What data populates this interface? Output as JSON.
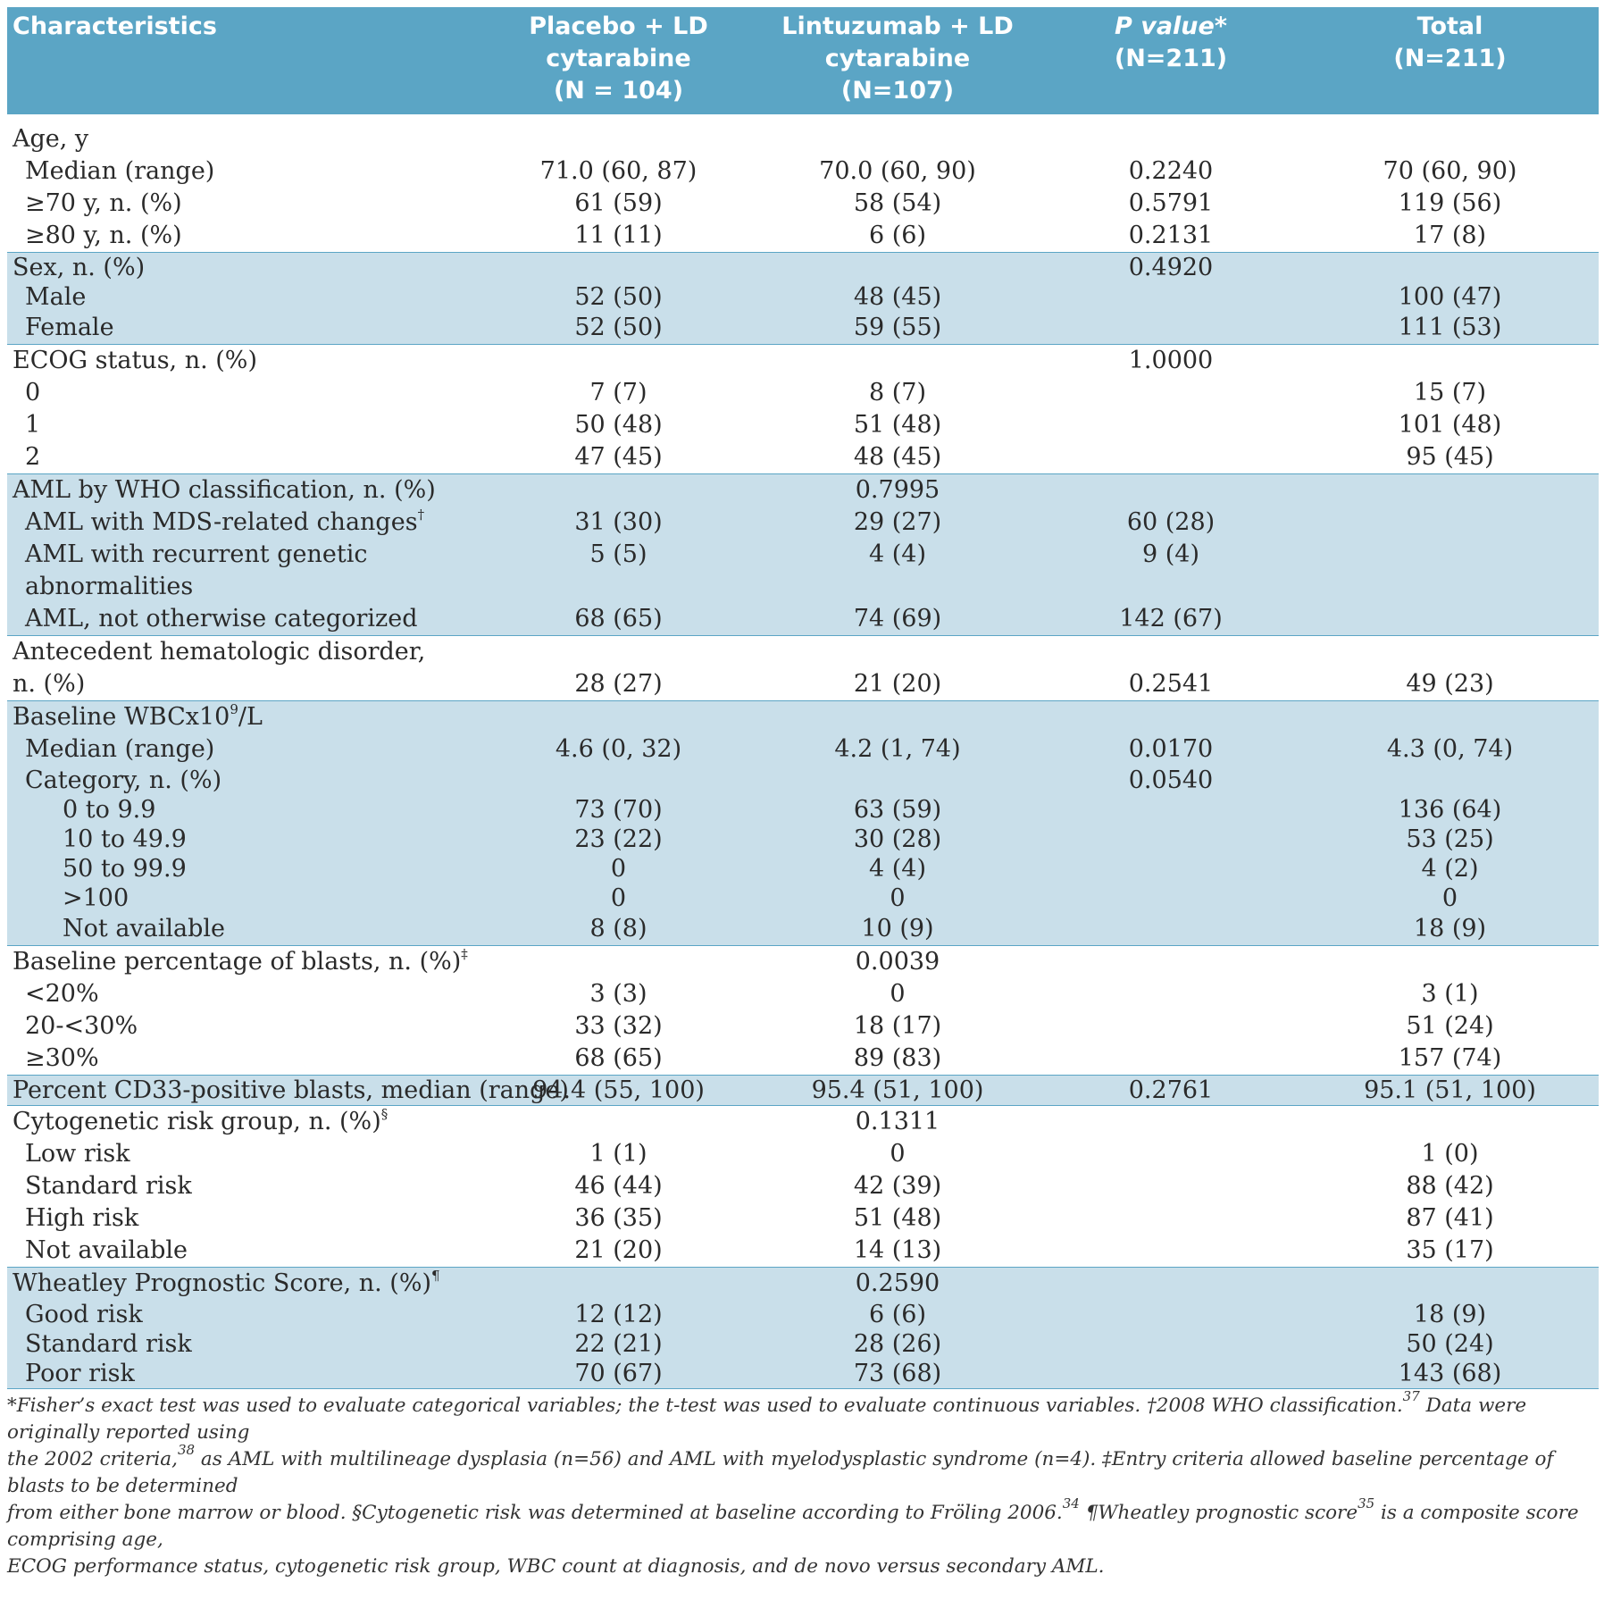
{
  "header": {
    "characteristics": "Characteristics",
    "placebo": [
      "Placebo + LD",
      "cytarabine",
      "(N = 104)"
    ],
    "lintuzumab": [
      "Lintuzumab + LD",
      "cytarabine",
      "(N=107)"
    ],
    "pvalue": [
      "P value*",
      "(N=211)"
    ],
    "total": [
      "Total",
      "(N=211)"
    ]
  },
  "rows": {
    "age_title": "Age, y",
    "age_median": {
      "label": "Median (range)",
      "placebo": "71.0 (60, 87)",
      "lintuzumab": "70.0 (60, 90)",
      "p": "0.2240",
      "total": "70 (60, 90)"
    },
    "age_70": {
      "label": "≥70 y, n. (%)",
      "placebo": "61 (59)",
      "lintuzumab": "58 (54)",
      "p": "0.5791",
      "total": "119 (56)"
    },
    "age_80": {
      "label": "≥80 y, n. (%)",
      "placebo": "11 (11)",
      "lintuzumab": "6 (6)",
      "p": "0.2131",
      "total": "17 (8)"
    },
    "sex_title": {
      "label": "Sex, n. (%)",
      "p": "0.4920"
    },
    "sex_male": {
      "label": "Male",
      "placebo": "52 (50)",
      "lintuzumab": "48 (45)",
      "total": "100 (47)"
    },
    "sex_female": {
      "label": "Female",
      "placebo": "52 (50)",
      "lintuzumab": "59 (55)",
      "total": "111 (53)"
    },
    "ecog_title": {
      "label": "ECOG status, n. (%)",
      "p": "1.0000"
    },
    "ecog_0": {
      "label": "0",
      "placebo": "7 (7)",
      "lintuzumab": "8 (7)",
      "total": "15 (7)"
    },
    "ecog_1": {
      "label": "1",
      "placebo": "50 (48)",
      "lintuzumab": "51 (48)",
      "total": "101 (48)"
    },
    "ecog_2": {
      "label": "2",
      "placebo": "47 (45)",
      "lintuzumab": "48 (45)",
      "total": "95 (45)"
    },
    "who_title": {
      "label": "AML by WHO classification, n. (%)",
      "lintuzumab": "0.7995"
    },
    "who_mds": {
      "label": "AML with MDS-related changes",
      "sup": "†",
      "placebo": "31 (30)",
      "lintuzumab": "29 (27)",
      "p": "60 (28)"
    },
    "who_rec": {
      "label1": "AML with recurrent genetic",
      "label2": "abnormalities",
      "placebo": "5 (5)",
      "lintuzumab": "4 (4)",
      "p": "9 (4)"
    },
    "who_noc": {
      "label": "AML, not otherwise categorized",
      "placebo": "68 (65)",
      "lintuzumab": "74 (69)",
      "p": "142 (67)"
    },
    "ahd": {
      "label1": "Antecedent hematologic disorder,",
      "label2": "n. (%)",
      "placebo": "28 (27)",
      "lintuzumab": "21 (20)",
      "p": "0.2541",
      "total": "49 (23)"
    },
    "wbc_title": {
      "label": "Baseline WBCx10",
      "sup": "9",
      "label_tail": "/L"
    },
    "wbc_median": {
      "label": "Median (range)",
      "placebo": "4.6 (0, 32)",
      "lintuzumab": "4.2 (1, 74)",
      "p": "0.0170",
      "total": "4.3 (0, 74)"
    },
    "wbc_cat": {
      "label": "Category, n. (%)",
      "p": "0.0540"
    },
    "wbc_0": {
      "label": "0 to 9.9",
      "placebo": "73 (70)",
      "lintuzumab": "63 (59)",
      "total": "136 (64)"
    },
    "wbc_10": {
      "label": "10 to 49.9",
      "placebo": "23 (22)",
      "lintuzumab": "30 (28)",
      "total": "53 (25)"
    },
    "wbc_50": {
      "label": "50 to 99.9",
      "placebo": "0",
      "lintuzumab": "4 (4)",
      "total": "4 (2)"
    },
    "wbc_100": {
      "label": ">100",
      "placebo": "0",
      "lintuzumab": "0",
      "total": "0"
    },
    "wbc_na": {
      "label": "Not available",
      "placebo": "8 (8)",
      "lintuzumab": "10 (9)",
      "total": "18 (9)"
    },
    "blasts_title": {
      "label": "Baseline percentage of blasts, n. (%)",
      "sup": "‡",
      "lintuzumab": "0.0039"
    },
    "blasts_20": {
      "label": "<20%",
      "placebo": "3 (3)",
      "lintuzumab": "0",
      "total": "3 (1)"
    },
    "blasts_2030": {
      "label": "20-<30%",
      "placebo": "33 (32)",
      "lintuzumab": "18 (17)",
      "total": "51 (24)"
    },
    "blasts_30": {
      "label": "≥30%",
      "placebo": "68 (65)",
      "lintuzumab": "89 (83)",
      "total": "157 (74)"
    },
    "cd33": {
      "label": "Percent CD33-positive blasts, median (range)",
      "placebo": "94.4 (55, 100)",
      "lintuzumab": "95.4 (51, 100)",
      "p": "0.2761",
      "total": "95.1 (51, 100)"
    },
    "cyto_title": {
      "label": "Cytogenetic risk group, n. (%)",
      "sup": "§",
      "lintuzumab": "0.1311"
    },
    "cyto_low": {
      "label": "Low risk",
      "placebo": "1 (1)",
      "lintuzumab": "0",
      "total": "1 (0)"
    },
    "cyto_std": {
      "label": "Standard risk",
      "placebo": "46 (44)",
      "lintuzumab": "42 (39)",
      "total": "88 (42)"
    },
    "cyto_high": {
      "label": "High risk",
      "placebo": "36 (35)",
      "lintuzumab": "51 (48)",
      "total": "87 (41)"
    },
    "cyto_na": {
      "label": "Not available",
      "placebo": "21 (20)",
      "lintuzumab": "14 (13)",
      "total": "35 (17)"
    },
    "wps_title": {
      "label": "Wheatley Prognostic Score, n. (%)",
      "sup": "¶",
      "lintuzumab": "0.2590"
    },
    "wps_good": {
      "label": "Good risk",
      "placebo": "12 (12)",
      "lintuzumab": "6 (6)",
      "total": "18 (9)"
    },
    "wps_std": {
      "label": "Standard risk",
      "placebo": "22 (21)",
      "lintuzumab": "28 (26)",
      "total": "50 (24)"
    },
    "wps_poor": {
      "label": "Poor risk",
      "placebo": "70 (67)",
      "lintuzumab": "73 (68)",
      "total": "143 (68)"
    }
  },
  "footnote": {
    "line1": "*Fisher’s exact test was used to evaluate categorical variables; the t-test was used to evaluate continuous variables. †2008 WHO classification.",
    "sup37": "37",
    "line1b": " Data were originally reported using",
    "line2a": "the 2002 criteria,",
    "sup38": "38",
    "line2b": " as AML with multilineage dysplasia (n=56) and AML with myelodysplastic syndrome (n=4). ‡Entry criteria allowed baseline percentage of blasts to be determined",
    "line3a": "from either bone marrow or blood. §Cytogenetic risk was determined at baseline according to Fröling 2006.",
    "sup34": "34",
    "line3b": " ¶Wheatley prognostic score",
    "sup35": "35",
    "line3c": " is a composite score comprising age,",
    "line4": "ECOG performance status, cytogenetic risk group, WBC count at diagnosis, and de novo versus secondary AML."
  }
}
